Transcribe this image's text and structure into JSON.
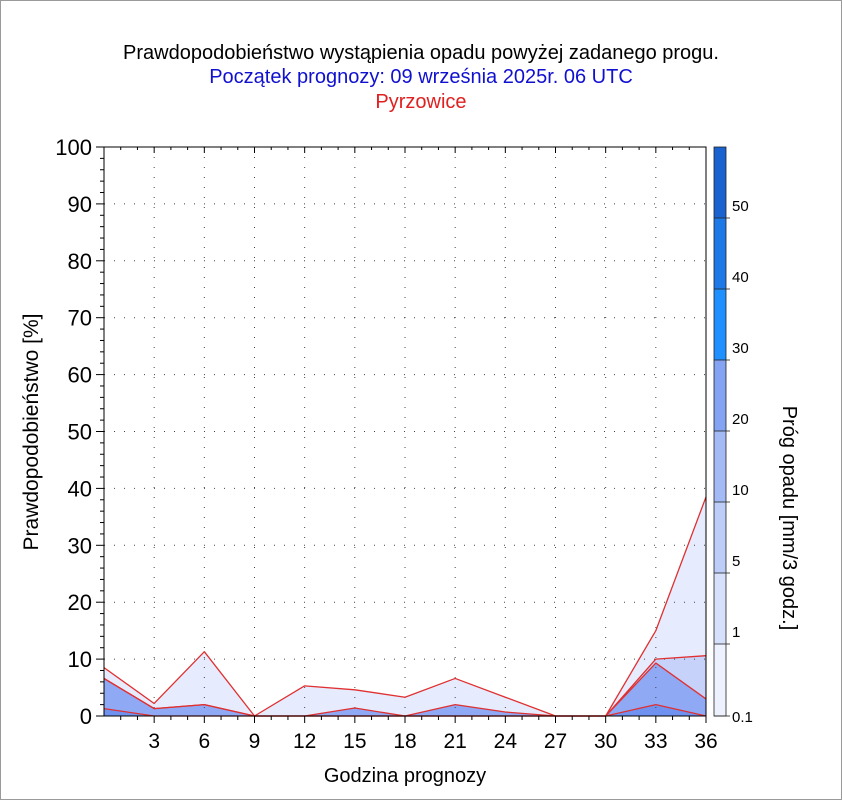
{
  "chart_data": {
    "type": "area",
    "title": "Prawdopodobieństwo wystąpienia opadu powyżej zadanego progu.",
    "subtitle": "Początek prognozy: 09 września 2025r. 06 UTC",
    "location": "Pyrzowice",
    "xlabel": "Godzina prognozy",
    "ylabel": "Prawdopodobieństwo [%]",
    "colorbar_label": "Próg opadu [mm/3 godz.]",
    "xlim": [
      0,
      36
    ],
    "ylim": [
      0,
      100
    ],
    "x_ticks": [
      3,
      6,
      9,
      12,
      15,
      18,
      21,
      24,
      27,
      30,
      33,
      36
    ],
    "y_ticks": [
      0,
      10,
      20,
      30,
      40,
      50,
      60,
      70,
      80,
      90,
      100
    ],
    "x": [
      0,
      3,
      6,
      9,
      12,
      15,
      18,
      21,
      24,
      27,
      30,
      33,
      36
    ],
    "series": [
      {
        "threshold": 0.1,
        "color": "#e6ecfd",
        "values": [
          8.5,
          2.2,
          11.3,
          0,
          5.3,
          4.6,
          3.3,
          6.6,
          3.3,
          0,
          0,
          15,
          38.5
        ]
      },
      {
        "threshold": 1,
        "color": "#c6d2f9",
        "values": [
          6.6,
          1.3,
          2.0,
          0,
          0,
          0,
          0,
          0,
          0,
          0,
          0,
          10,
          10.6
        ]
      },
      {
        "threshold": 5,
        "color": "#8fa9f5",
        "values": [
          6.6,
          1.3,
          2.0,
          0,
          0,
          1.4,
          0,
          2.0,
          0.7,
          0,
          0,
          9.3,
          3.0
        ]
      },
      {
        "threshold": 10,
        "color": "#6f92f0",
        "values": [
          1.3,
          0,
          0,
          0,
          0,
          0,
          0,
          0,
          0,
          0,
          0,
          2.0,
          0
        ]
      }
    ],
    "colorbar": {
      "levels": [
        0.1,
        1,
        5,
        10,
        20,
        30,
        40,
        50
      ],
      "level_labels": [
        "0.1",
        "1",
        "5",
        "10",
        "20",
        "30",
        "40",
        "50"
      ],
      "colors": [
        "#eef2fe",
        "#d8e1fb",
        "#bccdf8",
        "#a3baf6",
        "#84a4f3",
        "#1e90ff",
        "#1f78e8",
        "#1a62d0",
        "#1448b0"
      ]
    },
    "line_color": "#e03030",
    "grid": true
  }
}
